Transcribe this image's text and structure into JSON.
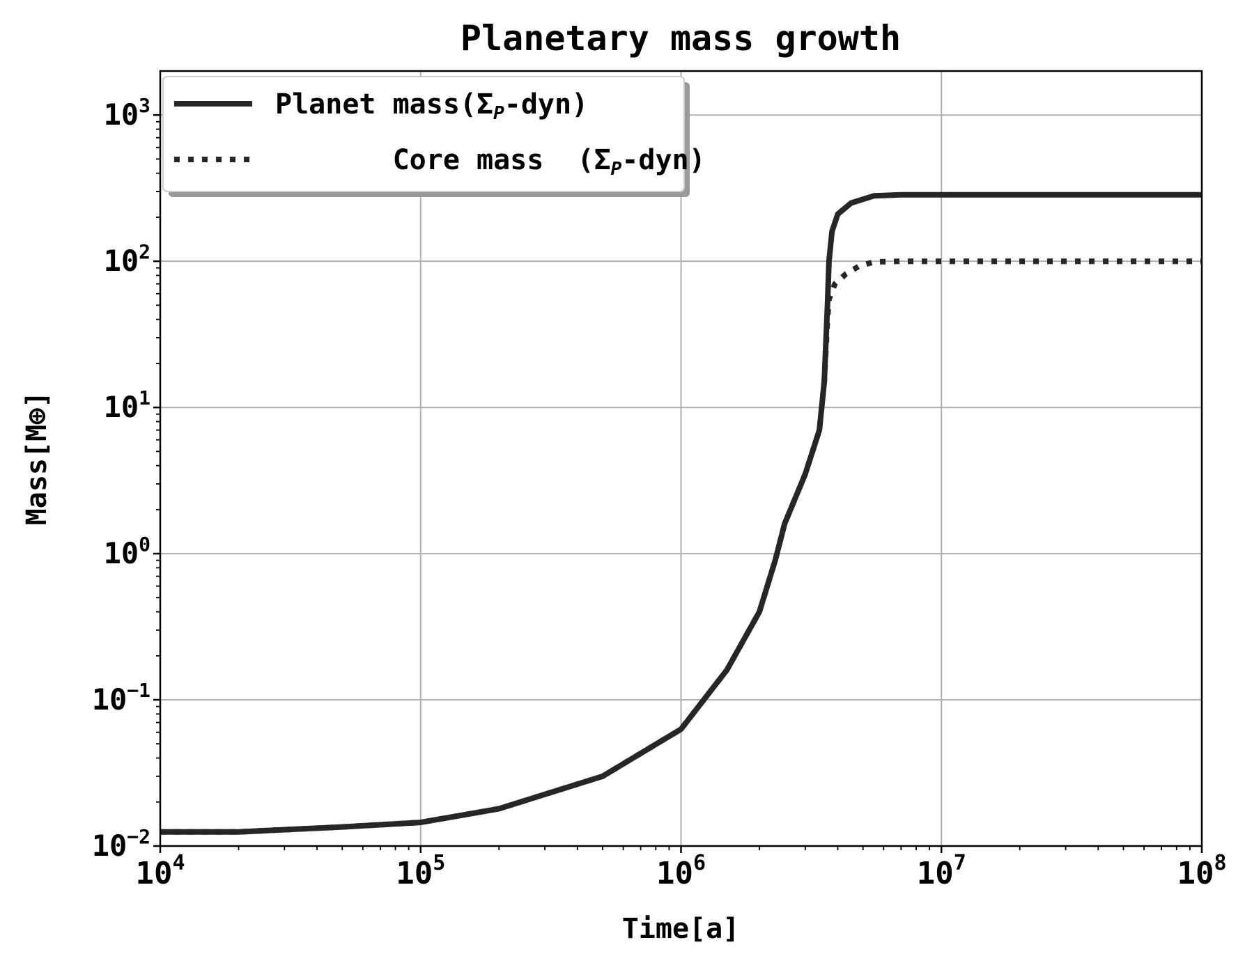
{
  "chart_data": {
    "type": "line",
    "title": "Planetary mass growth",
    "xlabel": "Time[a]",
    "ylabel": "Mass[M⊕]",
    "xscale": "log",
    "yscale": "log",
    "xlim": [
      10000,
      100000000
    ],
    "ylim": [
      0.01,
      2000
    ],
    "grid": true,
    "legend_position": "top-left",
    "x_ticks": [
      {
        "value": 10000,
        "base": "10",
        "exp": "4"
      },
      {
        "value": 100000,
        "base": "10",
        "exp": "5"
      },
      {
        "value": 1000000,
        "base": "10",
        "exp": "6"
      },
      {
        "value": 10000000,
        "base": "10",
        "exp": "7"
      },
      {
        "value": 100000000,
        "base": "10",
        "exp": "8"
      }
    ],
    "y_ticks": [
      {
        "value": 0.01,
        "base": "10",
        "exp": "−2"
      },
      {
        "value": 0.1,
        "base": "10",
        "exp": "−1"
      },
      {
        "value": 1,
        "base": "10",
        "exp": "0"
      },
      {
        "value": 10,
        "base": "10",
        "exp": "1"
      },
      {
        "value": 100,
        "base": "10",
        "exp": "2"
      },
      {
        "value": 1000,
        "base": "10",
        "exp": "3"
      }
    ],
    "series": [
      {
        "name": "Planet mass(ΣP-dyn)",
        "legend_main": "Planet mass(Σ",
        "legend_sub": "P",
        "legend_tail": "-dyn)",
        "style": "solid",
        "color": "#262626",
        "x": [
          10000,
          20000,
          50000,
          100000,
          200000,
          500000,
          1000000,
          1500000,
          2000000,
          2300000,
          2500000,
          3000000,
          3400000,
          3550000,
          3650000,
          3700000,
          3800000,
          4000000,
          4500000,
          5500000,
          7000000,
          100000000
        ],
        "y": [
          0.0125,
          0.0125,
          0.0135,
          0.0145,
          0.018,
          0.03,
          0.063,
          0.16,
          0.4,
          0.9,
          1.6,
          3.5,
          7,
          15,
          50,
          100,
          160,
          210,
          250,
          280,
          285,
          285
        ]
      },
      {
        "name": "Core mass  (ΣP-dyn)",
        "legend_main": "Core mass  (Σ",
        "legend_sub": "P",
        "legend_tail": "-dyn)",
        "style": "dotted",
        "color": "#262626",
        "x": [
          10000,
          20000,
          50000,
          100000,
          200000,
          500000,
          1000000,
          1500000,
          2000000,
          2300000,
          2500000,
          3000000,
          3400000,
          3550000,
          3650000,
          3700000,
          3900000,
          4300000,
          4800000,
          5500000,
          7000000,
          100000000
        ],
        "y": [
          0.0125,
          0.0125,
          0.0135,
          0.0145,
          0.018,
          0.03,
          0.063,
          0.16,
          0.4,
          0.9,
          1.6,
          3.5,
          7,
          15,
          40,
          55,
          70,
          82,
          92,
          99,
          100,
          100
        ]
      }
    ]
  }
}
